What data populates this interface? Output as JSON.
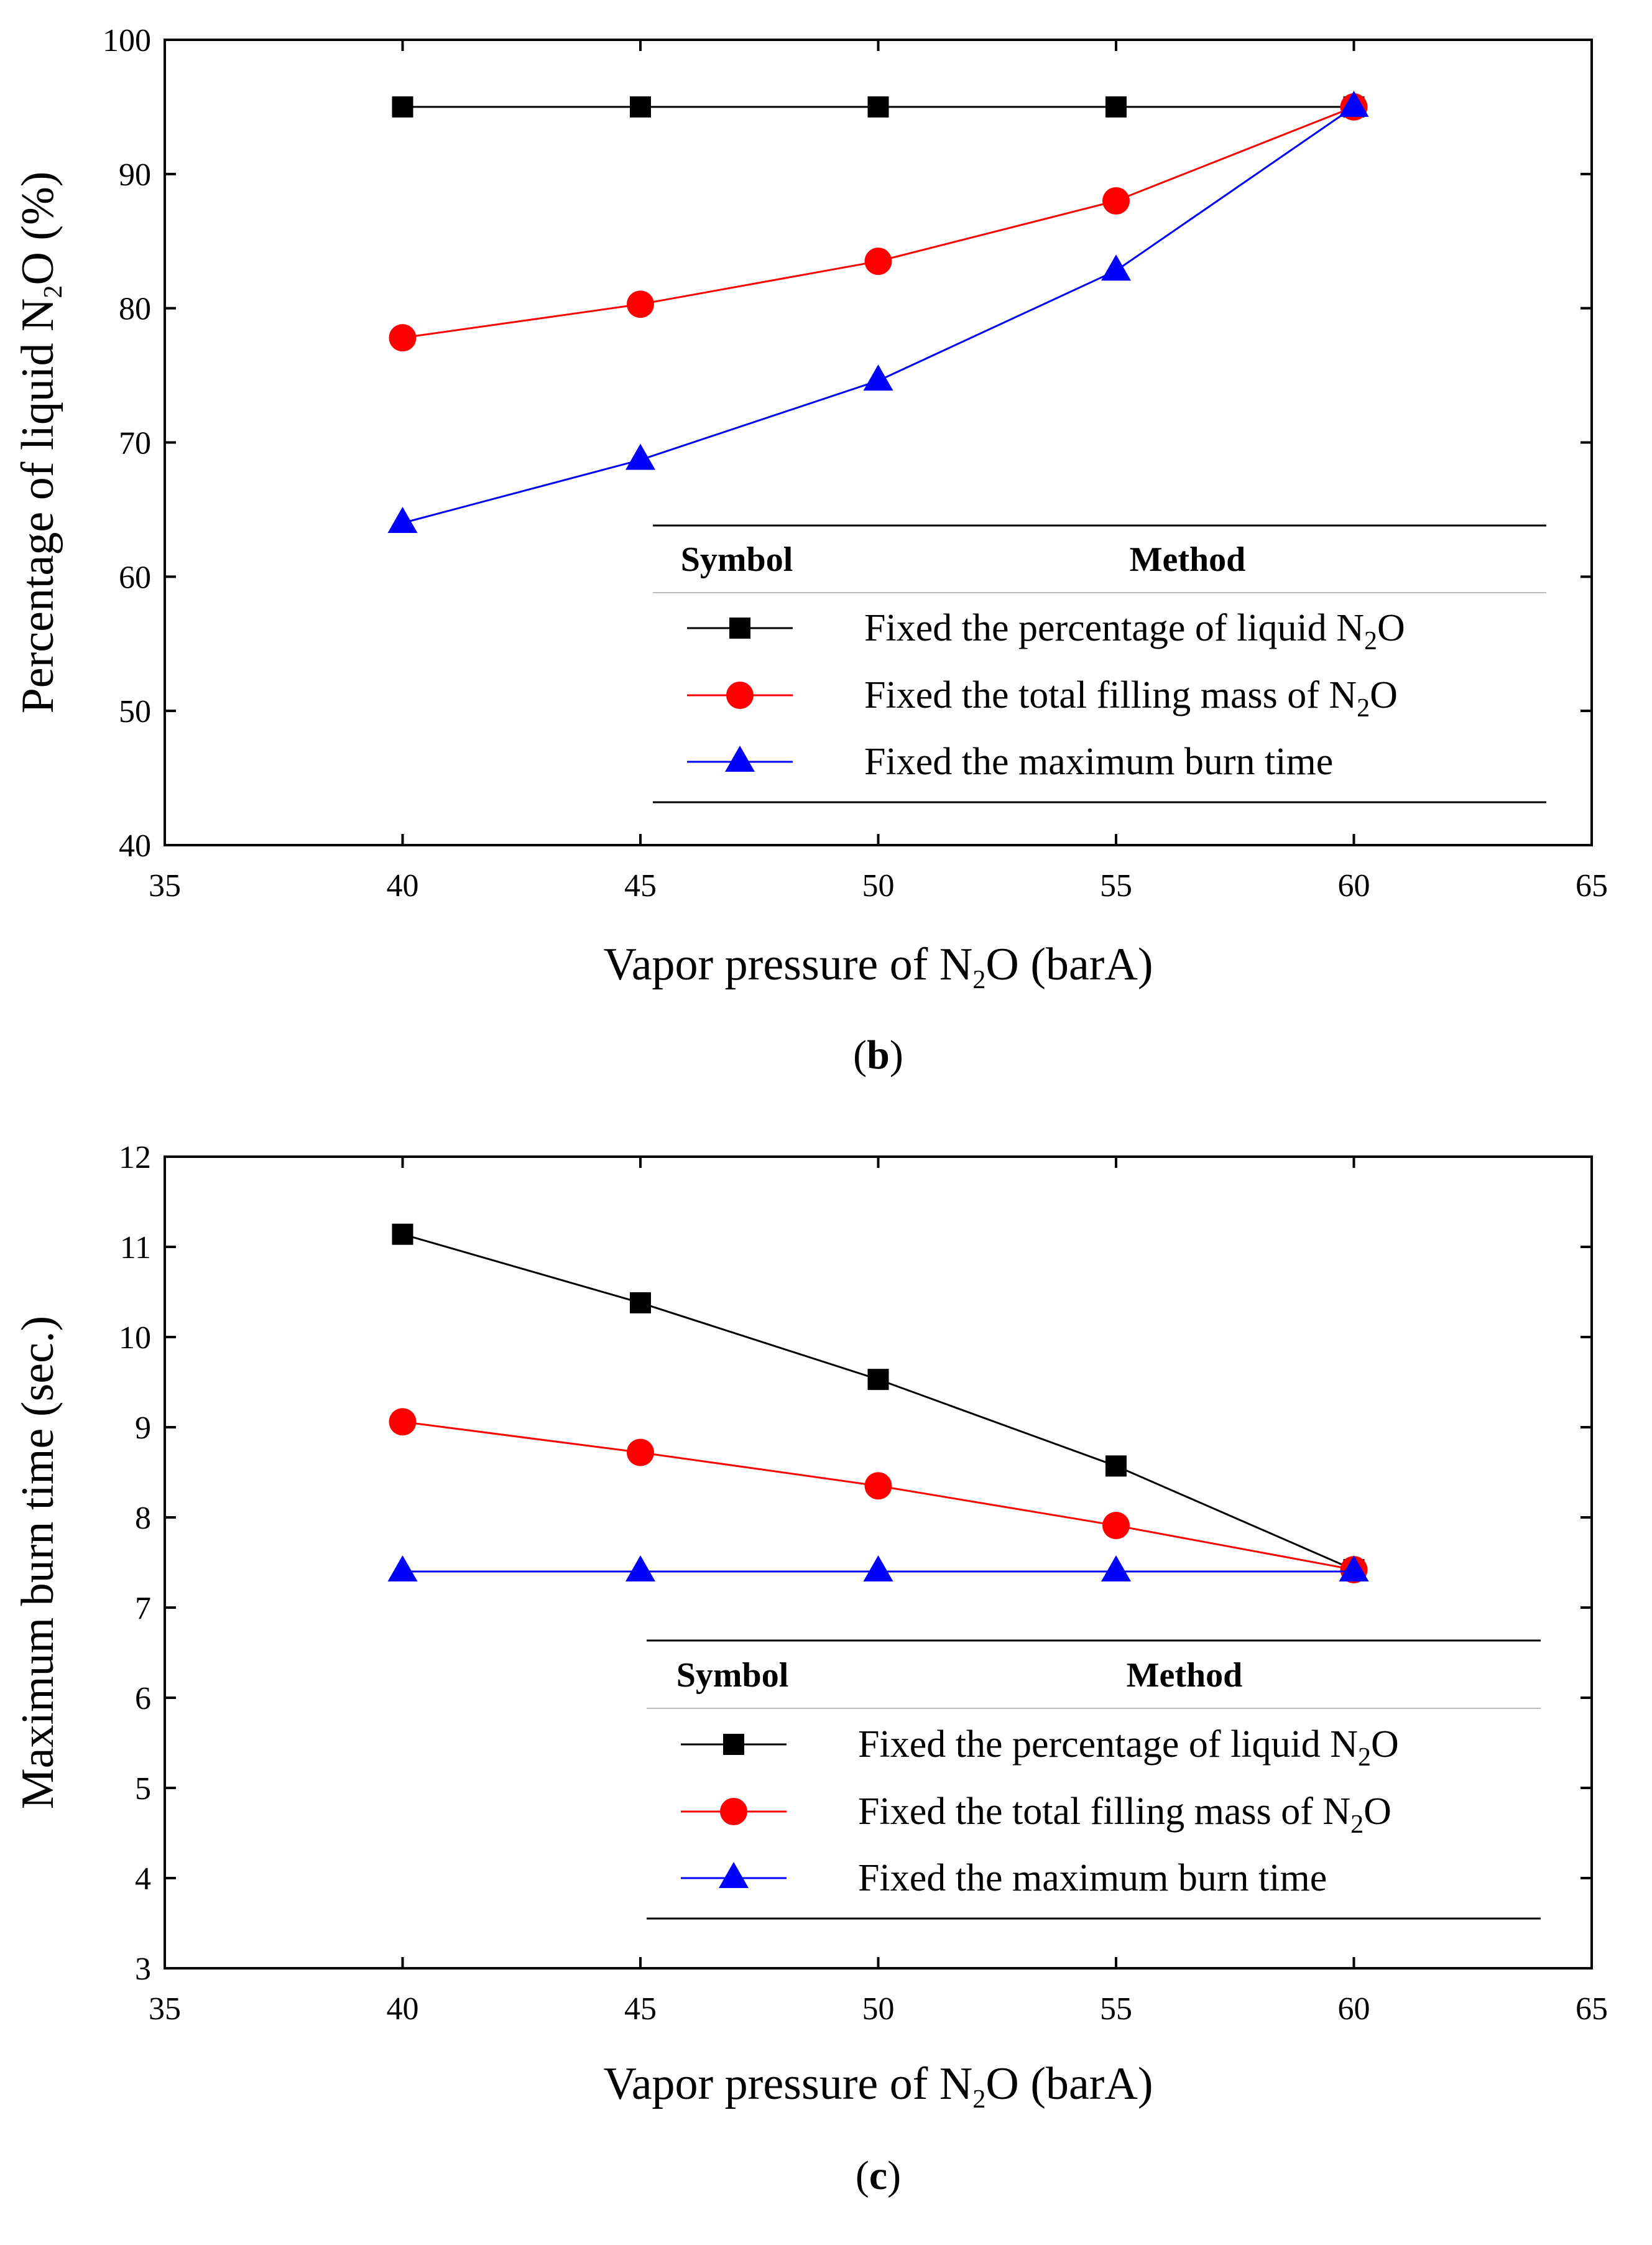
{
  "chart_data": [
    {
      "type": "line",
      "panel_label": "b",
      "title": "",
      "xlabel": "Vapor pressure of N2O (barA)",
      "ylabel": "Percentage of liquid N2O (%)",
      "xlim": [
        35,
        65
      ],
      "ylim": [
        40,
        100
      ],
      "xticks": [
        35,
        40,
        45,
        50,
        55,
        60,
        65
      ],
      "yticks": [
        40,
        50,
        60,
        70,
        80,
        90,
        100
      ],
      "grid": false,
      "x": [
        40,
        45,
        50,
        55,
        60
      ],
      "legend": {
        "placement": "bottom-right",
        "header_symbol": "Symbol",
        "header_method": "Method"
      },
      "series": [
        {
          "name": "Fixed the percentage of liquid N2O",
          "marker": "square",
          "color": "#000000",
          "values": [
            95,
            95,
            95,
            95,
            95
          ]
        },
        {
          "name": "Fixed the total filling mass of N2O",
          "marker": "circle",
          "color": "#ff0000",
          "values": [
            77.8,
            80.3,
            83.5,
            88.0,
            95
          ]
        },
        {
          "name": "Fixed the maximum burn time",
          "marker": "triangle",
          "color": "#0000ff",
          "values": [
            64.0,
            68.7,
            74.6,
            82.8,
            95
          ]
        }
      ]
    },
    {
      "type": "line",
      "panel_label": "c",
      "title": "",
      "xlabel": "Vapor pressure of N2O (barA)",
      "ylabel": "Maximum burn time (sec.)",
      "xlim": [
        35,
        65
      ],
      "ylim": [
        3,
        12
      ],
      "xticks": [
        35,
        40,
        45,
        50,
        55,
        60,
        65
      ],
      "yticks": [
        3,
        4,
        5,
        6,
        7,
        8,
        9,
        10,
        11,
        12
      ],
      "grid": false,
      "x": [
        40,
        45,
        50,
        55,
        60
      ],
      "legend": {
        "placement": "bottom-right",
        "header_symbol": "Symbol",
        "header_method": "Method"
      },
      "series": [
        {
          "name": "Fixed the percentage of liquid N2O",
          "marker": "square",
          "color": "#000000",
          "values": [
            11.14,
            10.38,
            9.53,
            8.57,
            7.42
          ]
        },
        {
          "name": "Fixed the total filling mass of N2O",
          "marker": "circle",
          "color": "#ff0000",
          "values": [
            9.06,
            8.72,
            8.35,
            7.91,
            7.42
          ]
        },
        {
          "name": "Fixed the maximum burn time",
          "marker": "triangle",
          "color": "#0000ff",
          "values": [
            7.4,
            7.4,
            7.4,
            7.4,
            7.4
          ]
        }
      ]
    }
  ]
}
